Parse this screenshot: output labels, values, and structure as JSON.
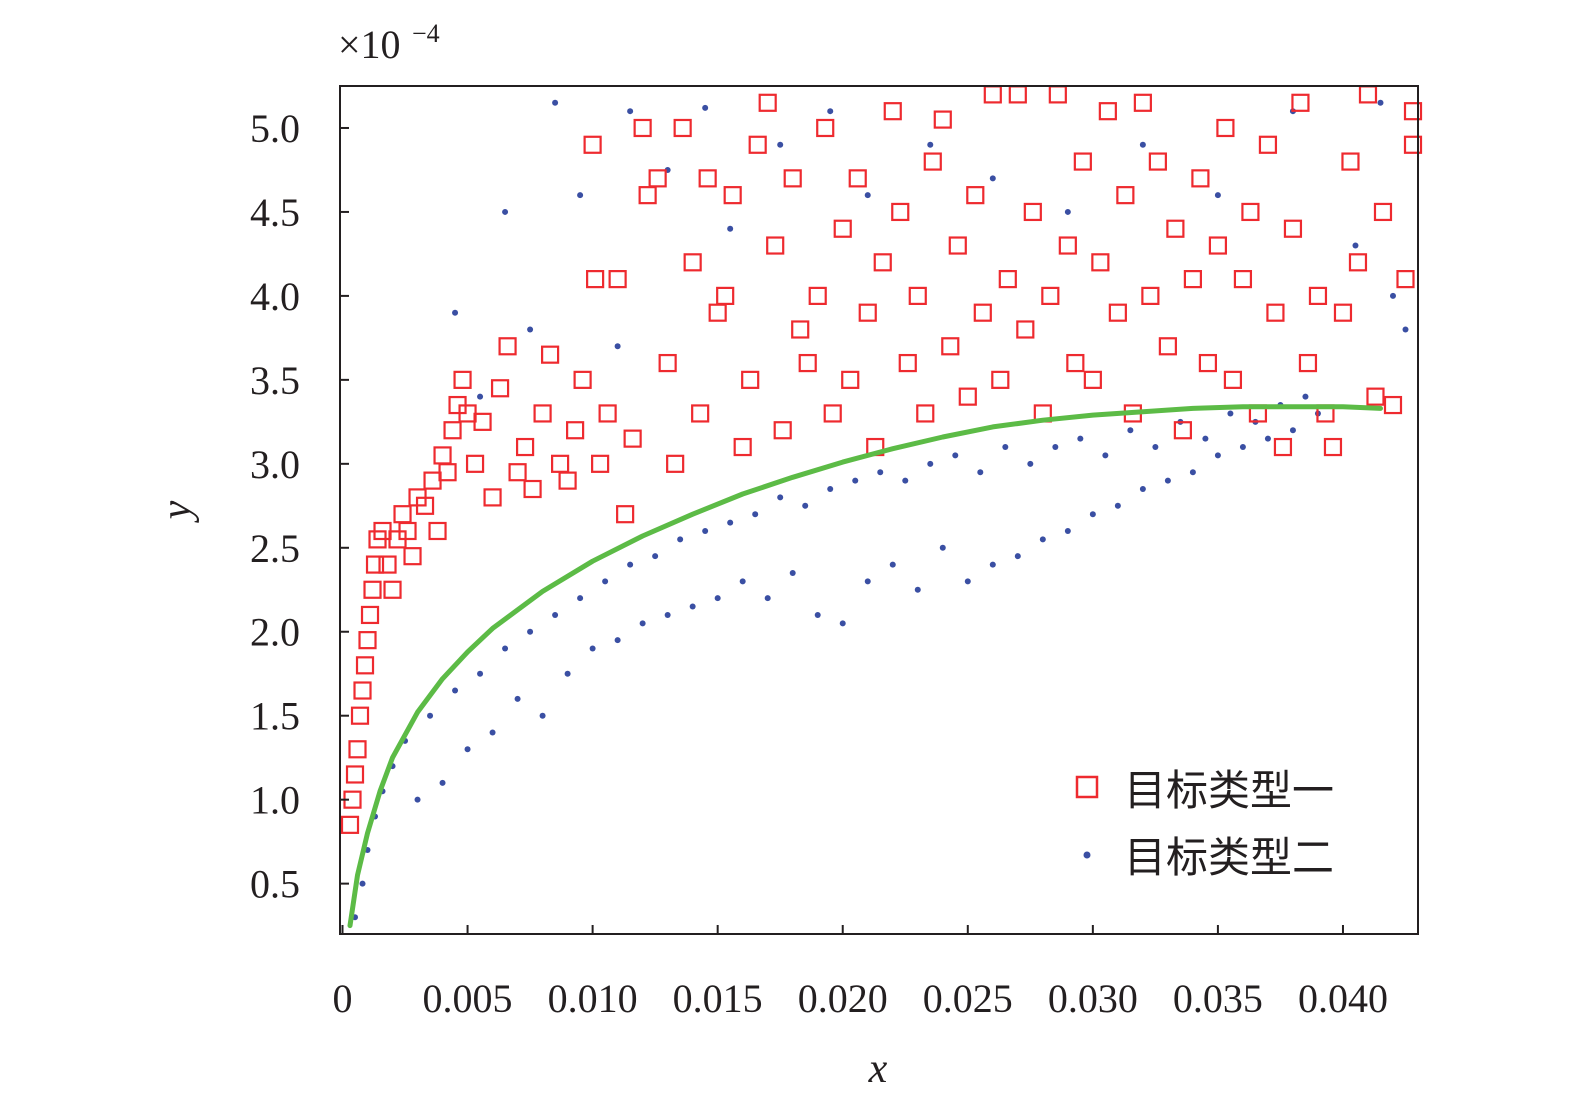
{
  "chart_data": {
    "type": "scatter",
    "xlabel": "x",
    "ylabel": "y",
    "y_multiplier_label": "×10",
    "y_multiplier_exponent": "−4",
    "xlim": [
      -0.0001,
      0.043
    ],
    "ylim": [
      0.2,
      5.25
    ],
    "x_ticks": [
      0,
      0.005,
      0.01,
      0.015,
      0.02,
      0.025,
      0.03,
      0.035,
      0.04
    ],
    "x_tick_labels": [
      "0",
      "0.005",
      "0.010",
      "0.015",
      "0.020",
      "0.025",
      "0.030",
      "0.035",
      "0.040"
    ],
    "y_ticks": [
      0.5,
      1.0,
      1.5,
      2.0,
      2.5,
      3.0,
      3.5,
      4.0,
      4.5,
      5.0
    ],
    "y_tick_labels": [
      "0.5",
      "1.0",
      "1.5",
      "2.0",
      "2.5",
      "3.0",
      "3.5",
      "4.0",
      "4.5",
      "5.0"
    ],
    "grid": false,
    "legend_position": "bottom-right",
    "series": [
      {
        "name": "目标类型一",
        "marker": "hollow-square",
        "color": "#ee2a2f",
        "points": [
          [
            0.0003,
            0.85
          ],
          [
            0.0004,
            1.0
          ],
          [
            0.0005,
            1.15
          ],
          [
            0.0006,
            1.3
          ],
          [
            0.0007,
            1.5
          ],
          [
            0.0008,
            1.65
          ],
          [
            0.0009,
            1.8
          ],
          [
            0.001,
            1.95
          ],
          [
            0.0011,
            2.1
          ],
          [
            0.0012,
            2.25
          ],
          [
            0.0013,
            2.4
          ],
          [
            0.0014,
            2.55
          ],
          [
            0.0016,
            2.6
          ],
          [
            0.0018,
            2.4
          ],
          [
            0.002,
            2.25
          ],
          [
            0.0022,
            2.55
          ],
          [
            0.0024,
            2.7
          ],
          [
            0.0026,
            2.6
          ],
          [
            0.0028,
            2.45
          ],
          [
            0.003,
            2.8
          ],
          [
            0.0033,
            2.75
          ],
          [
            0.0036,
            2.9
          ],
          [
            0.0038,
            2.6
          ],
          [
            0.004,
            3.05
          ],
          [
            0.0042,
            2.95
          ],
          [
            0.0044,
            3.2
          ],
          [
            0.0046,
            3.35
          ],
          [
            0.0048,
            3.5
          ],
          [
            0.005,
            3.3
          ],
          [
            0.0053,
            3.0
          ],
          [
            0.0056,
            3.25
          ],
          [
            0.006,
            2.8
          ],
          [
            0.0063,
            3.45
          ],
          [
            0.0066,
            3.7
          ],
          [
            0.007,
            2.95
          ],
          [
            0.0073,
            3.1
          ],
          [
            0.0076,
            2.85
          ],
          [
            0.008,
            3.3
          ],
          [
            0.0083,
            3.65
          ],
          [
            0.0087,
            3.0
          ],
          [
            0.009,
            2.9
          ],
          [
            0.0093,
            3.2
          ],
          [
            0.0096,
            3.5
          ],
          [
            0.01,
            4.9
          ],
          [
            0.0101,
            4.1
          ],
          [
            0.0103,
            3.0
          ],
          [
            0.0106,
            3.3
          ],
          [
            0.011,
            4.1
          ],
          [
            0.0113,
            2.7
          ],
          [
            0.0116,
            3.15
          ],
          [
            0.012,
            5.0
          ],
          [
            0.0122,
            4.6
          ],
          [
            0.0126,
            4.7
          ],
          [
            0.013,
            3.6
          ],
          [
            0.0133,
            3.0
          ],
          [
            0.0136,
            5.0
          ],
          [
            0.014,
            4.2
          ],
          [
            0.0143,
            3.3
          ],
          [
            0.0146,
            4.7
          ],
          [
            0.015,
            3.9
          ],
          [
            0.0153,
            4.0
          ],
          [
            0.0156,
            4.6
          ],
          [
            0.016,
            3.1
          ],
          [
            0.0163,
            3.5
          ],
          [
            0.0166,
            4.9
          ],
          [
            0.017,
            5.15
          ],
          [
            0.0173,
            4.3
          ],
          [
            0.0176,
            3.2
          ],
          [
            0.018,
            4.7
          ],
          [
            0.0183,
            3.8
          ],
          [
            0.0186,
            3.6
          ],
          [
            0.019,
            4.0
          ],
          [
            0.0193,
            5.0
          ],
          [
            0.0196,
            3.3
          ],
          [
            0.02,
            4.4
          ],
          [
            0.0203,
            3.5
          ],
          [
            0.0206,
            4.7
          ],
          [
            0.021,
            3.9
          ],
          [
            0.0213,
            3.1
          ],
          [
            0.0216,
            4.2
          ],
          [
            0.022,
            5.1
          ],
          [
            0.0223,
            4.5
          ],
          [
            0.0226,
            3.6
          ],
          [
            0.023,
            4.0
          ],
          [
            0.0233,
            3.3
          ],
          [
            0.0236,
            4.8
          ],
          [
            0.024,
            5.05
          ],
          [
            0.0243,
            3.7
          ],
          [
            0.0246,
            4.3
          ],
          [
            0.025,
            3.4
          ],
          [
            0.0253,
            4.6
          ],
          [
            0.0256,
            3.9
          ],
          [
            0.026,
            5.2
          ],
          [
            0.0263,
            3.5
          ],
          [
            0.0266,
            4.1
          ],
          [
            0.027,
            5.2
          ],
          [
            0.0273,
            3.8
          ],
          [
            0.0276,
            4.5
          ],
          [
            0.028,
            3.3
          ],
          [
            0.0283,
            4.0
          ],
          [
            0.0286,
            5.2
          ],
          [
            0.029,
            4.3
          ],
          [
            0.0293,
            3.6
          ],
          [
            0.0296,
            4.8
          ],
          [
            0.03,
            3.5
          ],
          [
            0.0303,
            4.2
          ],
          [
            0.0306,
            5.1
          ],
          [
            0.031,
            3.9
          ],
          [
            0.0313,
            4.6
          ],
          [
            0.0316,
            3.3
          ],
          [
            0.032,
            5.15
          ],
          [
            0.0323,
            4.0
          ],
          [
            0.0326,
            4.8
          ],
          [
            0.033,
            3.7
          ],
          [
            0.0333,
            4.4
          ],
          [
            0.0336,
            3.2
          ],
          [
            0.034,
            4.1
          ],
          [
            0.0343,
            4.7
          ],
          [
            0.0346,
            3.6
          ],
          [
            0.035,
            4.3
          ],
          [
            0.0353,
            5.0
          ],
          [
            0.0356,
            3.5
          ],
          [
            0.036,
            4.1
          ],
          [
            0.0363,
            4.5
          ],
          [
            0.0366,
            3.3
          ],
          [
            0.037,
            4.9
          ],
          [
            0.0373,
            3.9
          ],
          [
            0.0376,
            3.1
          ],
          [
            0.038,
            4.4
          ],
          [
            0.0383,
            5.15
          ],
          [
            0.0386,
            3.6
          ],
          [
            0.039,
            4.0
          ],
          [
            0.0393,
            3.3
          ],
          [
            0.0396,
            3.1
          ],
          [
            0.04,
            3.9
          ],
          [
            0.0403,
            4.8
          ],
          [
            0.0406,
            4.2
          ],
          [
            0.041,
            5.2
          ],
          [
            0.0413,
            3.4
          ],
          [
            0.0416,
            4.5
          ],
          [
            0.042,
            3.35
          ],
          [
            0.0425,
            4.1
          ],
          [
            0.0428,
            5.1
          ],
          [
            0.0428,
            4.9
          ]
        ]
      },
      {
        "name": "目标类型二",
        "marker": "dot",
        "color": "#3a4fa3",
        "points": [
          [
            0.0005,
            0.3
          ],
          [
            0.0008,
            0.5
          ],
          [
            0.001,
            0.7
          ],
          [
            0.0013,
            0.9
          ],
          [
            0.0016,
            1.05
          ],
          [
            0.002,
            1.2
          ],
          [
            0.0025,
            1.35
          ],
          [
            0.003,
            1.0
          ],
          [
            0.0035,
            1.5
          ],
          [
            0.004,
            1.1
          ],
          [
            0.0045,
            1.65
          ],
          [
            0.005,
            1.3
          ],
          [
            0.0055,
            1.75
          ],
          [
            0.006,
            1.4
          ],
          [
            0.0065,
            1.9
          ],
          [
            0.007,
            1.6
          ],
          [
            0.0075,
            2.0
          ],
          [
            0.008,
            1.5
          ],
          [
            0.0085,
            2.1
          ],
          [
            0.009,
            1.75
          ],
          [
            0.0095,
            2.2
          ],
          [
            0.01,
            1.9
          ],
          [
            0.0105,
            2.3
          ],
          [
            0.011,
            1.95
          ],
          [
            0.0115,
            2.4
          ],
          [
            0.012,
            2.05
          ],
          [
            0.0125,
            2.45
          ],
          [
            0.013,
            2.1
          ],
          [
            0.0135,
            2.55
          ],
          [
            0.014,
            2.15
          ],
          [
            0.0145,
            2.6
          ],
          [
            0.015,
            2.2
          ],
          [
            0.0155,
            2.65
          ],
          [
            0.016,
            2.3
          ],
          [
            0.0165,
            2.7
          ],
          [
            0.017,
            2.2
          ],
          [
            0.0175,
            2.8
          ],
          [
            0.018,
            2.35
          ],
          [
            0.0185,
            2.75
          ],
          [
            0.019,
            2.1
          ],
          [
            0.0195,
            2.85
          ],
          [
            0.02,
            2.05
          ],
          [
            0.0205,
            2.9
          ],
          [
            0.021,
            2.3
          ],
          [
            0.0215,
            2.95
          ],
          [
            0.022,
            2.4
          ],
          [
            0.0225,
            2.9
          ],
          [
            0.023,
            2.25
          ],
          [
            0.0235,
            3.0
          ],
          [
            0.024,
            2.5
          ],
          [
            0.0245,
            3.05
          ],
          [
            0.025,
            2.3
          ],
          [
            0.0255,
            2.95
          ],
          [
            0.026,
            2.4
          ],
          [
            0.0265,
            3.1
          ],
          [
            0.027,
            2.45
          ],
          [
            0.0275,
            3.0
          ],
          [
            0.028,
            2.55
          ],
          [
            0.0285,
            3.1
          ],
          [
            0.029,
            2.6
          ],
          [
            0.0295,
            3.15
          ],
          [
            0.03,
            2.7
          ],
          [
            0.0305,
            3.05
          ],
          [
            0.031,
            2.75
          ],
          [
            0.0315,
            3.2
          ],
          [
            0.032,
            2.85
          ],
          [
            0.0325,
            3.1
          ],
          [
            0.033,
            2.9
          ],
          [
            0.0335,
            3.25
          ],
          [
            0.034,
            2.95
          ],
          [
            0.0345,
            3.15
          ],
          [
            0.035,
            3.05
          ],
          [
            0.0355,
            3.3
          ],
          [
            0.036,
            3.1
          ],
          [
            0.0365,
            3.25
          ],
          [
            0.037,
            3.15
          ],
          [
            0.0375,
            3.35
          ],
          [
            0.038,
            3.2
          ],
          [
            0.0385,
            3.4
          ],
          [
            0.039,
            3.3
          ],
          [
            0.0045,
            3.9
          ],
          [
            0.0065,
            4.5
          ],
          [
            0.0085,
            5.15
          ],
          [
            0.0095,
            4.6
          ],
          [
            0.0115,
            5.1
          ],
          [
            0.013,
            4.75
          ],
          [
            0.0145,
            5.12
          ],
          [
            0.0155,
            4.4
          ],
          [
            0.0175,
            4.9
          ],
          [
            0.0195,
            5.1
          ],
          [
            0.021,
            4.6
          ],
          [
            0.0235,
            4.9
          ],
          [
            0.026,
            4.7
          ],
          [
            0.029,
            4.5
          ],
          [
            0.032,
            4.9
          ],
          [
            0.035,
            4.6
          ],
          [
            0.038,
            5.1
          ],
          [
            0.0405,
            4.3
          ],
          [
            0.042,
            4.0
          ],
          [
            0.0425,
            3.8
          ],
          [
            0.0415,
            5.15
          ],
          [
            0.0055,
            3.4
          ],
          [
            0.0075,
            3.8
          ],
          [
            0.011,
            3.7
          ]
        ]
      }
    ],
    "fit_line": {
      "color": "#5cbb46",
      "points": [
        [
          0.0003,
          0.25
        ],
        [
          0.0006,
          0.55
        ],
        [
          0.001,
          0.8
        ],
        [
          0.0015,
          1.05
        ],
        [
          0.002,
          1.25
        ],
        [
          0.003,
          1.52
        ],
        [
          0.004,
          1.72
        ],
        [
          0.005,
          1.88
        ],
        [
          0.006,
          2.02
        ],
        [
          0.008,
          2.24
        ],
        [
          0.01,
          2.42
        ],
        [
          0.012,
          2.57
        ],
        [
          0.014,
          2.7
        ],
        [
          0.016,
          2.82
        ],
        [
          0.018,
          2.92
        ],
        [
          0.02,
          3.01
        ],
        [
          0.022,
          3.09
        ],
        [
          0.024,
          3.16
        ],
        [
          0.026,
          3.22
        ],
        [
          0.028,
          3.26
        ],
        [
          0.03,
          3.29
        ],
        [
          0.032,
          3.31
        ],
        [
          0.034,
          3.33
        ],
        [
          0.036,
          3.34
        ],
        [
          0.038,
          3.34
        ],
        [
          0.04,
          3.34
        ],
        [
          0.0415,
          3.33
        ]
      ]
    }
  }
}
